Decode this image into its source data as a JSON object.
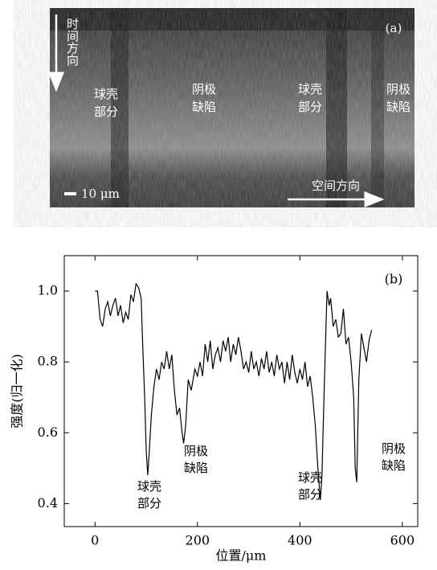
{
  "image": {
    "label": "(a)",
    "time_direction": "时间方向",
    "space_direction": "空间方向",
    "scale_bar": "10 μm",
    "regions": [
      {
        "lines": [
          "球壳",
          "部分"
        ]
      },
      {
        "lines": [
          "阴极",
          "缺陷"
        ]
      },
      {
        "lines": [
          "球壳",
          "部分"
        ]
      },
      {
        "lines": [
          "阴极",
          "缺陷"
        ]
      }
    ]
  },
  "chart_data": {
    "type": "line",
    "label": "(b)",
    "xlabel": "位置/μm",
    "ylabel": "强度(归一化)",
    "xlim": [
      -60,
      630
    ],
    "ylim": [
      0.335,
      1.1
    ],
    "xticks": [
      0,
      200,
      400,
      600
    ],
    "yticks": [
      0.4,
      0.6,
      0.8,
      {
        "value": 1,
        "label": "1.0"
      }
    ],
    "annotations": [
      {
        "lines": [
          "球壳",
          "部分"
        ]
      },
      {
        "lines": [
          "阴极",
          "缺陷"
        ]
      },
      {
        "lines": [
          "球壳",
          "部分"
        ]
      },
      {
        "lines": [
          "阴极",
          "缺陷"
        ]
      }
    ],
    "x": [
      0,
      5,
      10,
      15,
      20,
      25,
      30,
      35,
      40,
      45,
      50,
      55,
      60,
      65,
      70,
      75,
      80,
      85,
      90,
      93,
      97,
      100,
      103,
      106,
      110,
      115,
      120,
      125,
      130,
      135,
      140,
      145,
      150,
      155,
      160,
      165,
      170,
      173,
      177,
      182,
      188,
      195,
      200,
      205,
      210,
      215,
      220,
      225,
      230,
      235,
      240,
      245,
      250,
      255,
      260,
      265,
      270,
      275,
      280,
      285,
      290,
      295,
      300,
      305,
      310,
      315,
      320,
      325,
      330,
      335,
      340,
      345,
      350,
      355,
      360,
      365,
      370,
      375,
      380,
      385,
      390,
      395,
      400,
      405,
      410,
      415,
      420,
      425,
      430,
      435,
      440,
      443,
      447,
      450,
      453,
      457,
      460,
      465,
      470,
      475,
      480,
      485,
      490,
      495,
      500,
      505,
      508,
      511,
      515,
      520,
      525,
      530,
      535,
      540
    ],
    "series": [
      {
        "color": "#000000",
        "values": [
          1.0,
          1.0,
          0.92,
          0.9,
          0.95,
          0.97,
          0.93,
          0.96,
          0.98,
          0.93,
          0.96,
          0.91,
          0.94,
          0.92,
          0.99,
          0.97,
          1.02,
          1.01,
          0.98,
          0.85,
          0.7,
          0.55,
          0.48,
          0.55,
          0.65,
          0.73,
          0.78,
          0.75,
          0.8,
          0.78,
          0.83,
          0.78,
          0.82,
          0.72,
          0.65,
          0.67,
          0.6,
          0.57,
          0.62,
          0.75,
          0.72,
          0.78,
          0.76,
          0.8,
          0.76,
          0.85,
          0.8,
          0.86,
          0.78,
          0.82,
          0.84,
          0.8,
          0.86,
          0.83,
          0.87,
          0.8,
          0.85,
          0.82,
          0.87,
          0.83,
          0.78,
          0.8,
          0.77,
          0.83,
          0.78,
          0.8,
          0.76,
          0.81,
          0.78,
          0.83,
          0.77,
          0.8,
          0.76,
          0.82,
          0.78,
          0.8,
          0.74,
          0.8,
          0.75,
          0.82,
          0.77,
          0.74,
          0.78,
          0.75,
          0.8,
          0.73,
          0.76,
          0.7,
          0.62,
          0.5,
          0.41,
          0.48,
          0.7,
          0.85,
          1.0,
          0.96,
          0.98,
          0.9,
          0.92,
          0.87,
          0.88,
          0.95,
          0.85,
          0.87,
          0.8,
          0.7,
          0.5,
          0.46,
          0.75,
          0.88,
          0.84,
          0.8,
          0.86,
          0.89
        ]
      }
    ]
  }
}
